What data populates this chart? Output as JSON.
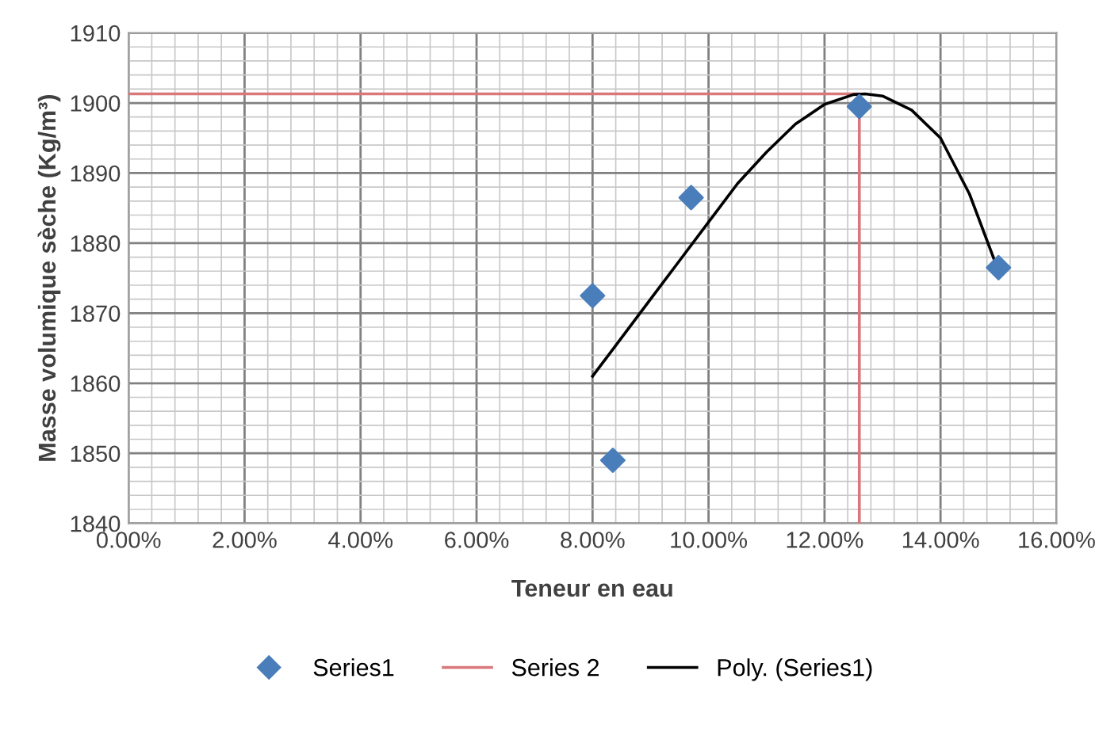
{
  "chart_data": {
    "type": "scatter",
    "xlabel": "Teneur en eau",
    "ylabel": "Masse volumique sèche (Kg/m³)",
    "series": [
      {
        "name": "Series1",
        "color": "#4a7ebb",
        "marker": "diamond",
        "x": [
          8.0,
          8.35,
          9.7,
          12.6,
          15.0
        ],
        "values": [
          1872.5,
          1849,
          1886.5,
          1899.5,
          1876.5
        ]
      },
      {
        "name": "Series 2",
        "type": "line",
        "color": "#d9777a",
        "marker": "none",
        "x": [
          0,
          12.6,
          12.6
        ],
        "values": [
          1901.3,
          1901.3,
          1840
        ]
      },
      {
        "name": "Poly. (Series1)",
        "type": "line",
        "color": "#000000",
        "marker": "none",
        "x": [
          8.0,
          8.5,
          9.0,
          9.5,
          10.0,
          10.5,
          11.0,
          11.5,
          12.0,
          12.5,
          12.7,
          13.0,
          13.5,
          14.0,
          14.5,
          15.0
        ],
        "values": [
          1861,
          1866.5,
          1872,
          1877.5,
          1883,
          1888.5,
          1893,
          1897,
          1899.8,
          1901.2,
          1901.3,
          1901,
          1899,
          1895,
          1887,
          1876
        ]
      }
    ],
    "xlim": [
      0,
      16
    ],
    "ylim": [
      1840,
      1910
    ],
    "xticks": [
      {
        "value": 0,
        "label": "0.00%"
      },
      {
        "value": 0.4,
        "label": null
      },
      {
        "value": 0.8,
        "label": null
      },
      {
        "value": 1.2,
        "label": null
      },
      {
        "value": 1.6,
        "label": null
      },
      {
        "value": 2,
        "label": "2.00%"
      },
      {
        "value": 2.4,
        "label": null
      },
      {
        "value": 2.8,
        "label": null
      },
      {
        "value": 3.2,
        "label": null
      },
      {
        "value": 3.6,
        "label": null
      },
      {
        "value": 4,
        "label": "4.00%"
      },
      {
        "value": 4.4,
        "label": null
      },
      {
        "value": 4.8,
        "label": null
      },
      {
        "value": 5.2,
        "label": null
      },
      {
        "value": 5.6,
        "label": null
      },
      {
        "value": 6,
        "label": "6.00%"
      },
      {
        "value": 6.4,
        "label": null
      },
      {
        "value": 6.8,
        "label": null
      },
      {
        "value": 7.2,
        "label": null
      },
      {
        "value": 7.6,
        "label": null
      },
      {
        "value": 8,
        "label": "8.00%"
      },
      {
        "value": 8.4,
        "label": null
      },
      {
        "value": 8.8,
        "label": null
      },
      {
        "value": 9.2,
        "label": null
      },
      {
        "value": 9.6,
        "label": null
      },
      {
        "value": 10,
        "label": "10.00%"
      },
      {
        "value": 10.4,
        "label": null
      },
      {
        "value": 10.8,
        "label": null
      },
      {
        "value": 11.2,
        "label": null
      },
      {
        "value": 11.6,
        "label": null
      },
      {
        "value": 12,
        "label": "12.00%"
      },
      {
        "value": 12.4,
        "label": null
      },
      {
        "value": 12.8,
        "label": null
      },
      {
        "value": 13.2,
        "label": null
      },
      {
        "value": 13.6,
        "label": null
      },
      {
        "value": 14,
        "label": "14.00%"
      },
      {
        "value": 14.4,
        "label": null
      },
      {
        "value": 14.8,
        "label": null
      },
      {
        "value": 15.2,
        "label": null
      },
      {
        "value": 15.6,
        "label": null
      },
      {
        "value": 16,
        "label": "16.00%"
      }
    ],
    "yticks": [
      1840,
      {
        "value": 1842,
        "label": null
      },
      {
        "value": 1844,
        "label": null
      },
      {
        "value": 1846,
        "label": null
      },
      {
        "value": 1848,
        "label": null
      },
      1850,
      {
        "value": 1852,
        "label": null
      },
      {
        "value": 1854,
        "label": null
      },
      {
        "value": 1856,
        "label": null
      },
      {
        "value": 1858,
        "label": null
      },
      1860,
      {
        "value": 1862,
        "label": null
      },
      {
        "value": 1864,
        "label": null
      },
      {
        "value": 1866,
        "label": null
      },
      {
        "value": 1868,
        "label": null
      },
      1870,
      {
        "value": 1872,
        "label": null
      },
      {
        "value": 1874,
        "label": null
      },
      {
        "value": 1876,
        "label": null
      },
      {
        "value": 1878,
        "label": null
      },
      1880,
      {
        "value": 1882,
        "label": null
      },
      {
        "value": 1884,
        "label": null
      },
      {
        "value": 1886,
        "label": null
      },
      {
        "value": 1888,
        "label": null
      },
      1890,
      {
        "value": 1892,
        "label": null
      },
      {
        "value": 1894,
        "label": null
      },
      {
        "value": 1896,
        "label": null
      },
      {
        "value": 1898,
        "label": null
      },
      1900,
      {
        "value": 1902,
        "label": null
      },
      {
        "value": 1904,
        "label": null
      },
      {
        "value": 1906,
        "label": null
      },
      {
        "value": 1908,
        "label": null
      },
      1910
    ],
    "grid": true,
    "legend": "bottom"
  }
}
